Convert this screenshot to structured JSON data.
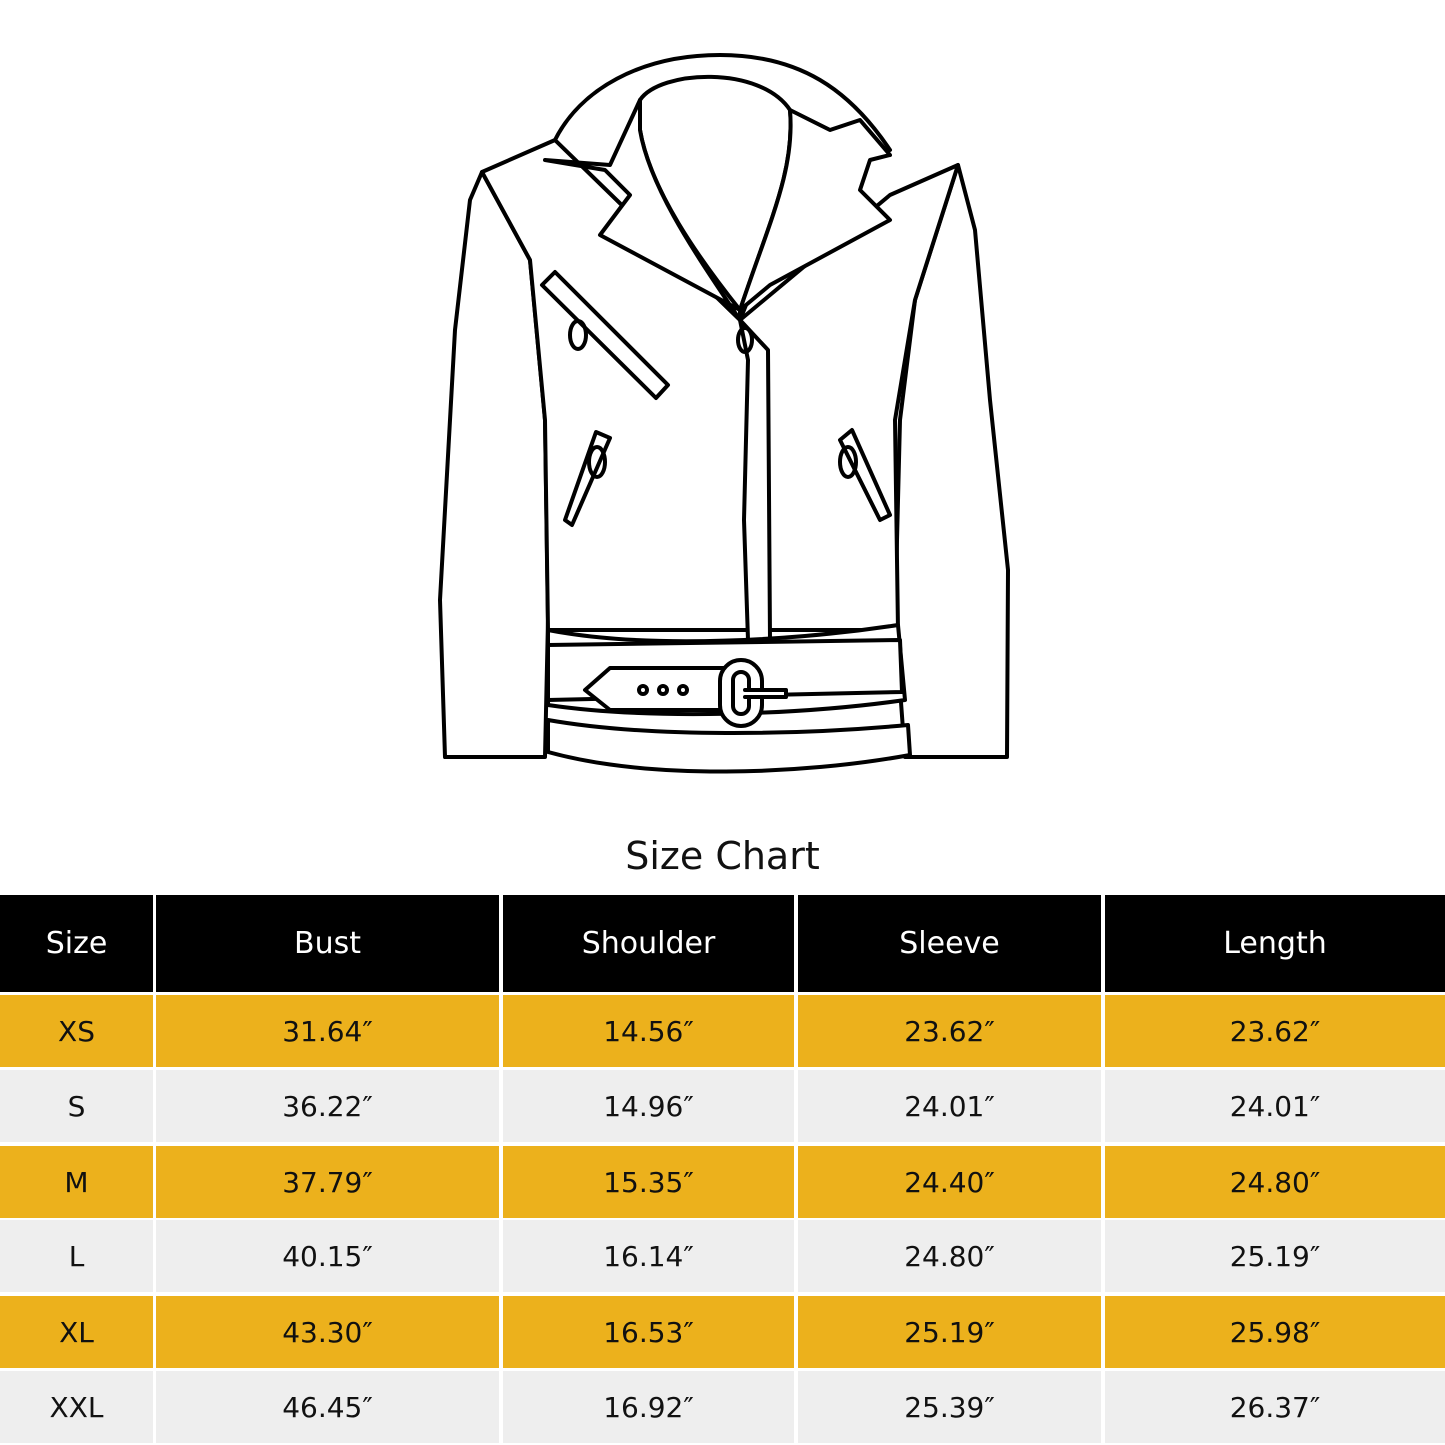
{
  "title": "Size Chart",
  "colors": {
    "header_bg": "#000000",
    "odd_row": "#ecb11c",
    "even_row": "#eeeeee"
  },
  "table": {
    "headers": [
      "Size",
      "Bust",
      "Shoulder",
      "Sleeve",
      "Length"
    ],
    "rows": [
      [
        "XS",
        "31.64″",
        "14.56″",
        "23.62″",
        "23.62″"
      ],
      [
        "S",
        "36.22″",
        "14.96″",
        "24.01″",
        "24.01″"
      ],
      [
        "M",
        "37.79″",
        "15.35″",
        "24.40″",
        "24.80″"
      ],
      [
        "L",
        "40.15″",
        "16.14″",
        "24.80″",
        "25.19″"
      ],
      [
        "XL",
        "43.30″",
        "16.53″",
        "25.19″",
        "25.98″"
      ],
      [
        "XXL",
        "46.45″",
        "16.92″",
        "25.39″",
        "26.37″"
      ]
    ]
  }
}
